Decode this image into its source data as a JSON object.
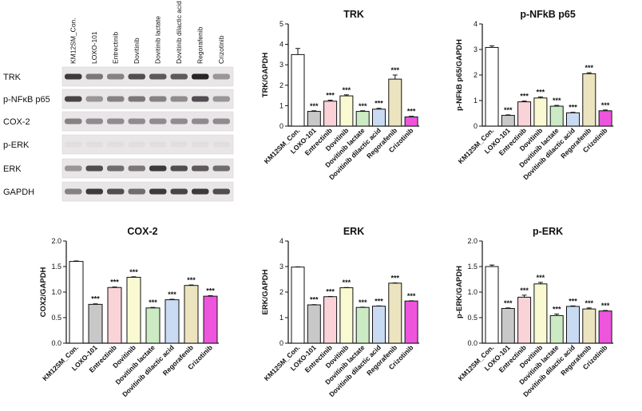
{
  "blot": {
    "lanes": [
      "KM12SM_Con.",
      "LOXO-101",
      "Entrectinib",
      "Dovitinib",
      "Dovitinib lactate",
      "Dovitinib dilactic acid",
      "Regorafenib",
      "Crizotinib"
    ],
    "rows": [
      {
        "label": "TRK",
        "intensity": [
          0.85,
          0.55,
          0.5,
          0.75,
          0.7,
          0.7,
          0.95,
          0.4
        ]
      },
      {
        "label": "p-NFκB p65",
        "intensity": [
          0.8,
          0.4,
          0.5,
          0.55,
          0.5,
          0.45,
          0.75,
          0.4
        ]
      },
      {
        "label": "COX-2",
        "intensity": [
          0.5,
          0.45,
          0.45,
          0.45,
          0.45,
          0.45,
          0.45,
          0.45
        ]
      },
      {
        "label": "p-ERK",
        "intensity": [
          0.05,
          0.05,
          0.05,
          0.05,
          0.05,
          0.05,
          0.05,
          0.05
        ]
      },
      {
        "label": "ERK",
        "intensity": [
          0.4,
          0.75,
          0.6,
          0.55,
          0.85,
          0.75,
          0.7,
          0.6
        ]
      },
      {
        "label": "GAPDH",
        "intensity": [
          0.5,
          0.85,
          0.75,
          0.6,
          0.85,
          0.8,
          0.85,
          0.75
        ]
      }
    ]
  },
  "chart_data": [
    {
      "type": "bar",
      "title": "TRK",
      "ylabel": "TRK/GAPDH",
      "ylim": [
        0,
        5
      ],
      "yticks": [
        0,
        1,
        2,
        3,
        4,
        5
      ],
      "categories": [
        "KM12SM_Con.",
        "LOXO-101",
        "Entrectinib",
        "Dovitinib",
        "Dovitinib lactate",
        "Dovitinib dilactic acid",
        "Regorafenib",
        "Crizotinib"
      ],
      "values": [
        3.5,
        0.72,
        1.22,
        1.48,
        0.72,
        0.83,
        2.3,
        0.45
      ],
      "errors": [
        0.3,
        0.03,
        0.05,
        0.05,
        0.03,
        0.04,
        0.2,
        0.03
      ],
      "annotations": [
        "",
        "***",
        "***",
        "***",
        "***",
        "***",
        "***",
        "***"
      ],
      "colors": [
        "#ffffff",
        "#c8c8c8",
        "#f9d3d8",
        "#fafad2",
        "#ccebc5",
        "#c9daf3",
        "#ece4bf",
        "#ee55dd"
      ]
    },
    {
      "type": "bar",
      "title": "p-NFkB p65",
      "ylabel": "p-NFkB p65/GAPDH",
      "ylim": [
        0,
        4
      ],
      "yticks": [
        0,
        1,
        2,
        3,
        4
      ],
      "categories": [
        "KM12SM_Con.",
        "LOXO-101",
        "Entrectinib",
        "Dovitinib",
        "Dovitinib lactate",
        "Dovitinib dilactic acid",
        "Regorafenib",
        "Crizotinib"
      ],
      "values": [
        3.08,
        0.42,
        0.95,
        1.1,
        0.78,
        0.52,
        2.05,
        0.6
      ],
      "errors": [
        0.06,
        0.02,
        0.03,
        0.04,
        0.03,
        0.02,
        0.04,
        0.03
      ],
      "annotations": [
        "",
        "***",
        "***",
        "***",
        "***",
        "***",
        "***",
        "***"
      ],
      "colors": [
        "#ffffff",
        "#c8c8c8",
        "#f9d3d8",
        "#fafad2",
        "#ccebc5",
        "#c9daf3",
        "#ece4bf",
        "#ee55dd"
      ]
    },
    {
      "type": "bar",
      "title": "COX-2",
      "ylabel": "COX2/GAPDH",
      "ylim": [
        0,
        2.0
      ],
      "yticks": [
        0,
        0.5,
        1.0,
        1.5,
        2.0
      ],
      "ytick_labels": [
        "0.0",
        "0.5",
        "1.0",
        "1.5",
        "2.0"
      ],
      "categories": [
        "KM12SM_Con.",
        "LOXO-101",
        "Entrectinib",
        "Dovitinib",
        "Dovitinib lactate",
        "Dovitinib dilactic acid",
        "Regorafenib",
        "Crizotinib"
      ],
      "values": [
        1.6,
        0.76,
        1.09,
        1.29,
        0.69,
        0.85,
        1.13,
        0.92
      ],
      "errors": [
        0.01,
        0.01,
        0.01,
        0.01,
        0.01,
        0.01,
        0.01,
        0.01
      ],
      "annotations": [
        "",
        "***",
        "***",
        "***",
        "***",
        "***",
        "***",
        "***"
      ],
      "colors": [
        "#ffffff",
        "#c8c8c8",
        "#f9d3d8",
        "#fafad2",
        "#ccebc5",
        "#c9daf3",
        "#ece4bf",
        "#ee55dd"
      ]
    },
    {
      "type": "bar",
      "title": "ERK",
      "ylabel": "ERK/GAPDH",
      "ylim": [
        0,
        4
      ],
      "yticks": [
        0,
        1,
        2,
        3,
        4
      ],
      "categories": [
        "KM12SM_Con.",
        "LOXO-101",
        "Entrectinib",
        "Dovitinib",
        "Dovitinib lactate",
        "Dovitinib dilactic acid",
        "Regorafenib",
        "Crizotinib"
      ],
      "values": [
        2.98,
        1.5,
        1.82,
        2.17,
        1.4,
        1.45,
        2.35,
        1.65
      ],
      "errors": [
        0.01,
        0.01,
        0.01,
        0.01,
        0.01,
        0.01,
        0.01,
        0.01
      ],
      "annotations": [
        "",
        "***",
        "***",
        "***",
        "***",
        "***",
        "***",
        "***"
      ],
      "colors": [
        "#ffffff",
        "#c8c8c8",
        "#f9d3d8",
        "#fafad2",
        "#ccebc5",
        "#c9daf3",
        "#ece4bf",
        "#ee55dd"
      ]
    },
    {
      "type": "bar",
      "title": "p-ERK",
      "ylabel": "p-ERK/GAPDH",
      "ylim": [
        0,
        2.0
      ],
      "yticks": [
        0,
        0.5,
        1.0,
        1.5,
        2.0
      ],
      "ytick_labels": [
        "0.0",
        "0.5",
        "1.0",
        "1.5",
        "2.0"
      ],
      "categories": [
        "KM12SM_Con.",
        "LOXO-101",
        "Entrectinib",
        "Dovitinib",
        "Dovitinib lactate",
        "Dovitinib dilactic acid",
        "Regorafenib",
        "Crizotinib"
      ],
      "values": [
        1.5,
        0.68,
        0.9,
        1.16,
        0.54,
        0.72,
        0.67,
        0.63
      ],
      "errors": [
        0.03,
        0.01,
        0.04,
        0.03,
        0.03,
        0.01,
        0.02,
        0.01
      ],
      "annotations": [
        "",
        "***",
        "***",
        "***",
        "***",
        "***",
        "***",
        "***"
      ],
      "colors": [
        "#ffffff",
        "#c8c8c8",
        "#f9d3d8",
        "#fafad2",
        "#ccebc5",
        "#c9daf3",
        "#ece4bf",
        "#ee55dd"
      ]
    }
  ]
}
